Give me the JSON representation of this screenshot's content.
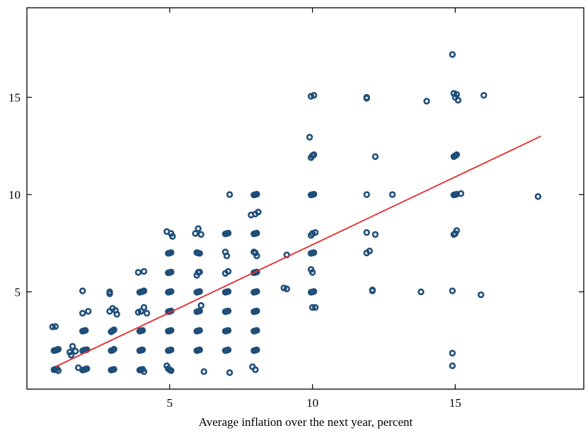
{
  "chart_data": {
    "type": "scatter",
    "title": "",
    "xlabel": "Average inflation over the next year, percent",
    "ylabel": "",
    "xlim": [
      0,
      19.5
    ],
    "ylim": [
      0,
      19.6
    ],
    "x_ticks": [
      5,
      10,
      15
    ],
    "y_ticks": [
      5,
      10,
      15
    ],
    "x_tick_labels": [
      "5",
      "10",
      "15"
    ],
    "y_tick_labels": [
      "5",
      "10",
      "15"
    ],
    "grid": false,
    "legend": "none",
    "colors": {
      "points": "#1f4e79",
      "fit_line": "#e8282b",
      "axes": "#000000"
    },
    "fit_line": {
      "x": [
        1,
        18
      ],
      "y": [
        1.15,
        13.0
      ]
    },
    "series": [
      {
        "points": [
          [
            1,
            1
          ],
          [
            1.05,
            1.05
          ],
          [
            0.95,
            1.0
          ],
          [
            1.1,
            0.95
          ],
          [
            1,
            2
          ],
          [
            1.05,
            2.02
          ],
          [
            0.95,
            1.98
          ],
          [
            1.1,
            2.05
          ],
          [
            0.9,
            3.2
          ],
          [
            1,
            3.22
          ],
          [
            1.8,
            1.1
          ],
          [
            1.5,
            1.9
          ],
          [
            1.6,
            2.2
          ],
          [
            1.7,
            1.95
          ],
          [
            1.55,
            1.75
          ],
          [
            2,
            1
          ],
          [
            2.05,
            1.02
          ],
          [
            1.95,
            0.98
          ],
          [
            2.1,
            1.05
          ],
          [
            2,
            2
          ],
          [
            2.05,
            2.02
          ],
          [
            1.95,
            1.97
          ],
          [
            2.1,
            2.03
          ],
          [
            2,
            3
          ],
          [
            2.05,
            3.02
          ],
          [
            1.95,
            2.98
          ],
          [
            1.95,
            3.9
          ],
          [
            2.15,
            4.0
          ],
          [
            1.95,
            5.05
          ],
          [
            3,
            1
          ],
          [
            3.05,
            1.02
          ],
          [
            2.95,
            0.98
          ],
          [
            3,
            2
          ],
          [
            3.05,
            2.05
          ],
          [
            2.95,
            1.98
          ],
          [
            3,
            3
          ],
          [
            3.05,
            3.05
          ],
          [
            2.95,
            2.95
          ],
          [
            3.1,
            4.05
          ],
          [
            2.9,
            4.0
          ],
          [
            3.0,
            4.15
          ],
          [
            3.15,
            3.85
          ],
          [
            2.9,
            4.9
          ],
          [
            2.9,
            5.0
          ],
          [
            4,
            1
          ],
          [
            4.05,
            1.02
          ],
          [
            3.95,
            0.98
          ],
          [
            4.1,
            0.9
          ],
          [
            4,
            2
          ],
          [
            4.05,
            2.02
          ],
          [
            3.95,
            1.98
          ],
          [
            4,
            3
          ],
          [
            4.05,
            3.02
          ],
          [
            3.95,
            2.98
          ],
          [
            4,
            4
          ],
          [
            3.9,
            3.95
          ],
          [
            4.1,
            4.2
          ],
          [
            4.2,
            3.9
          ],
          [
            4,
            5
          ],
          [
            4.05,
            5.02
          ],
          [
            3.95,
            4.98
          ],
          [
            4.1,
            5.05
          ],
          [
            3.9,
            6.0
          ],
          [
            4.1,
            6.05
          ],
          [
            5,
            1
          ],
          [
            4.95,
            1.05
          ],
          [
            5.05,
            0.95
          ],
          [
            4.9,
            1.2
          ],
          [
            5,
            2
          ],
          [
            5.05,
            2.02
          ],
          [
            4.95,
            1.98
          ],
          [
            5,
            3
          ],
          [
            5.05,
            3.02
          ],
          [
            4.95,
            2.98
          ],
          [
            5,
            4
          ],
          [
            5.05,
            4.02
          ],
          [
            4.95,
            3.98
          ],
          [
            5,
            5
          ],
          [
            5.05,
            5.02
          ],
          [
            4.95,
            4.98
          ],
          [
            5,
            6
          ],
          [
            5.05,
            6.02
          ],
          [
            4.95,
            5.98
          ],
          [
            5,
            7
          ],
          [
            5.05,
            7.02
          ],
          [
            4.95,
            6.98
          ],
          [
            4.9,
            8.1
          ],
          [
            5.05,
            8.0
          ],
          [
            5.1,
            7.85
          ],
          [
            6,
            2
          ],
          [
            6.05,
            2.02
          ],
          [
            5.95,
            1.98
          ],
          [
            6,
            3
          ],
          [
            6.05,
            3.02
          ],
          [
            5.95,
            2.98
          ],
          [
            6,
            4
          ],
          [
            6.05,
            4.02
          ],
          [
            5.95,
            3.98
          ],
          [
            6.1,
            4.3
          ],
          [
            6,
            5
          ],
          [
            6.05,
            5.02
          ],
          [
            5.95,
            4.98
          ],
          [
            6,
            6
          ],
          [
            6.05,
            6.02
          ],
          [
            5.95,
            5.85
          ],
          [
            6,
            7
          ],
          [
            6.05,
            6.98
          ],
          [
            5.95,
            7.02
          ],
          [
            5.9,
            8.0
          ],
          [
            6.0,
            8.25
          ],
          [
            6.1,
            7.95
          ],
          [
            6.2,
            0.9
          ],
          [
            7,
            2
          ],
          [
            7.05,
            2.02
          ],
          [
            6.95,
            1.98
          ],
          [
            7,
            3
          ],
          [
            7.05,
            3.02
          ],
          [
            6.95,
            2.98
          ],
          [
            7,
            4
          ],
          [
            7.05,
            4.02
          ],
          [
            6.95,
            3.98
          ],
          [
            7,
            5
          ],
          [
            7.05,
            5.02
          ],
          [
            6.95,
            4.98
          ],
          [
            7.05,
            6.05
          ],
          [
            6.95,
            5.95
          ],
          [
            7.0,
            6.85
          ],
          [
            6.95,
            7.05
          ],
          [
            7,
            8
          ],
          [
            7.05,
            8.02
          ],
          [
            6.95,
            7.98
          ],
          [
            7.1,
            0.85
          ],
          [
            7.1,
            10.0
          ],
          [
            8,
            1
          ],
          [
            7.9,
            1.15
          ],
          [
            8,
            2
          ],
          [
            8.05,
            2.02
          ],
          [
            7.95,
            1.98
          ],
          [
            8,
            3
          ],
          [
            8.05,
            3.02
          ],
          [
            7.95,
            2.98
          ],
          [
            8,
            4
          ],
          [
            8.05,
            4.02
          ],
          [
            7.95,
            3.98
          ],
          [
            8,
            5
          ],
          [
            8.05,
            5.02
          ],
          [
            7.95,
            4.98
          ],
          [
            8,
            6
          ],
          [
            8.05,
            6.02
          ],
          [
            7.95,
            5.98
          ],
          [
            8,
            7
          ],
          [
            8.05,
            6.85
          ],
          [
            7.95,
            7.05
          ],
          [
            8,
            8
          ],
          [
            8.05,
            8.02
          ],
          [
            7.95,
            7.98
          ],
          [
            8,
            9
          ],
          [
            7.85,
            8.95
          ],
          [
            8.1,
            9.1
          ],
          [
            8,
            10
          ],
          [
            8.05,
            10.02
          ],
          [
            7.95,
            9.98
          ],
          [
            9,
            5.2
          ],
          [
            9.1,
            5.15
          ],
          [
            9.1,
            6.9
          ],
          [
            10,
            4.2
          ],
          [
            10.1,
            4.2
          ],
          [
            10,
            5
          ],
          [
            10.05,
            5.02
          ],
          [
            9.95,
            4.98
          ],
          [
            10,
            6
          ],
          [
            9.95,
            6.15
          ],
          [
            10,
            7
          ],
          [
            10.05,
            7.02
          ],
          [
            9.95,
            6.98
          ],
          [
            10,
            8
          ],
          [
            10.1,
            8.05
          ],
          [
            9.95,
            7.9
          ],
          [
            10,
            10
          ],
          [
            10.05,
            10.02
          ],
          [
            9.95,
            9.98
          ],
          [
            10,
            12
          ],
          [
            10.05,
            12.05
          ],
          [
            9.95,
            11.9
          ],
          [
            9.9,
            12.95
          ],
          [
            9.95,
            15.05
          ],
          [
            10.05,
            15.1
          ],
          [
            11.9,
            7.0
          ],
          [
            11.9,
            8.05
          ],
          [
            11.9,
            10.0
          ],
          [
            11.9,
            14.95
          ],
          [
            11.9,
            15.0
          ],
          [
            12.0,
            7.1
          ],
          [
            12.1,
            5.05
          ],
          [
            12.1,
            5.1
          ],
          [
            12.2,
            7.95
          ],
          [
            12.2,
            11.95
          ],
          [
            12.8,
            10.0
          ],
          [
            13.8,
            5.0
          ],
          [
            14.0,
            14.8
          ],
          [
            14.9,
            1.2
          ],
          [
            14.9,
            1.85
          ],
          [
            14.9,
            5.05
          ],
          [
            15,
            8
          ],
          [
            15.05,
            8.15
          ],
          [
            14.95,
            7.95
          ],
          [
            15,
            10
          ],
          [
            15.05,
            10.02
          ],
          [
            14.95,
            9.98
          ],
          [
            15,
            12
          ],
          [
            15.05,
            12.05
          ],
          [
            14.95,
            11.95
          ],
          [
            15,
            15
          ],
          [
            15.05,
            15.15
          ],
          [
            14.95,
            15.2
          ],
          [
            14.9,
            17.2
          ],
          [
            15.1,
            14.85
          ],
          [
            15.2,
            10.05
          ],
          [
            15.9,
            4.85
          ],
          [
            16,
            15.1
          ],
          [
            17.9,
            9.9
          ]
        ]
      }
    ]
  }
}
